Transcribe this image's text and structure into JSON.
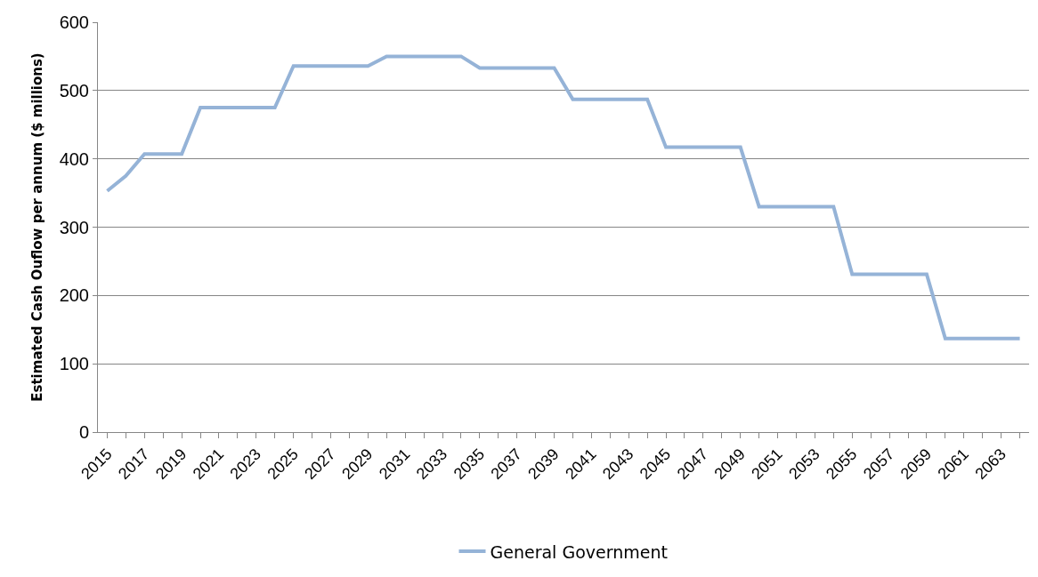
{
  "chart_data": {
    "type": "line",
    "ylabel": "Estimated Cash Ouflow per annum ($ millions)",
    "categories": [
      "2015",
      null,
      "2017",
      null,
      "2019",
      null,
      "2021",
      null,
      "2023",
      null,
      "2025",
      null,
      "2027",
      null,
      "2029",
      null,
      "2031",
      null,
      "2033",
      null,
      "2035",
      null,
      "2037",
      null,
      "2039",
      null,
      "2041",
      null,
      "2043",
      null,
      "2045",
      null,
      "2047",
      null,
      "2049",
      null,
      "2051",
      null,
      "2053",
      null,
      "2055",
      null,
      "2057",
      null,
      "2059",
      null,
      "2061",
      null,
      "2063",
      null
    ],
    "series": [
      {
        "name": "General Government",
        "color": "#95b3d7",
        "values": [
          353,
          375,
          407,
          407,
          407,
          475,
          475,
          475,
          475,
          475,
          536,
          536,
          536,
          536,
          536,
          550,
          550,
          550,
          550,
          550,
          533,
          533,
          533,
          533,
          533,
          487,
          487,
          487,
          487,
          487,
          417,
          417,
          417,
          417,
          417,
          330,
          330,
          330,
          330,
          330,
          231,
          231,
          231,
          231,
          231,
          137,
          137,
          137,
          137,
          137
        ]
      }
    ],
    "ylim": [
      0,
      600
    ],
    "yticks": [
      0,
      100,
      200,
      300,
      400,
      500,
      600
    ],
    "grid": "y",
    "legend": "bottom",
    "marker": "none",
    "line_style": "solid"
  }
}
